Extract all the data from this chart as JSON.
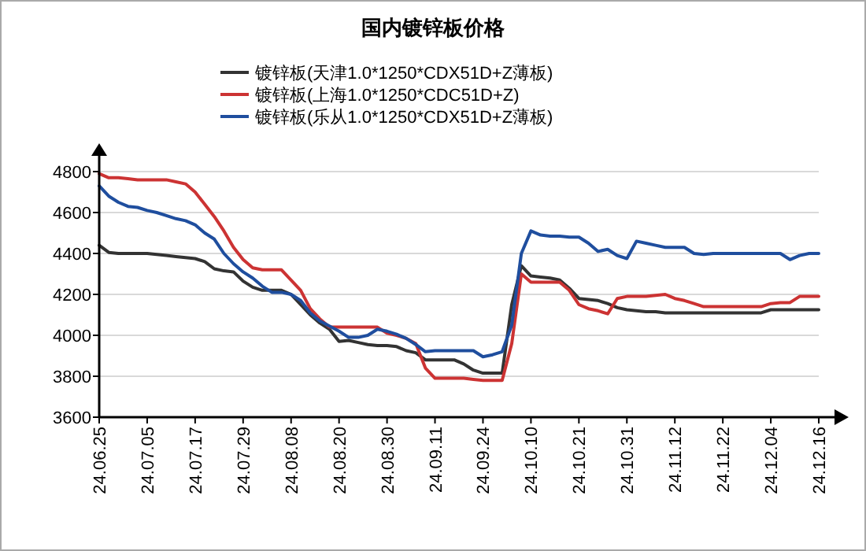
{
  "chart_data": {
    "type": "line",
    "title": "国内镀锌板价格",
    "categories": [
      "24.06.25",
      null,
      null,
      null,
      null,
      "24.07.05",
      null,
      null,
      null,
      null,
      "24.07.17",
      null,
      null,
      null,
      null,
      "24.07.29",
      null,
      null,
      null,
      null,
      "24.08.08",
      null,
      null,
      null,
      null,
      "24.08.20",
      null,
      null,
      null,
      null,
      "24.08.30",
      null,
      null,
      null,
      null,
      "24.09.11",
      null,
      null,
      null,
      null,
      "24.09.24",
      null,
      null,
      null,
      null,
      "24.10.10",
      null,
      null,
      null,
      null,
      "24.10.21",
      null,
      null,
      null,
      null,
      "24.10.31",
      null,
      null,
      null,
      null,
      "24.11.12",
      null,
      null,
      null,
      null,
      "24.11.22",
      null,
      null,
      null,
      null,
      "24.12.04",
      null,
      null,
      null,
      null,
      "24.12.16"
    ],
    "series": [
      {
        "name": "镀锌板(天津1.0*1250*CDX51D+Z薄板)",
        "color": "#333333",
        "values": [
          4440,
          4405,
          4400,
          4400,
          4400,
          4400,
          4395,
          4390,
          4385,
          4380,
          4375,
          4360,
          4325,
          4315,
          4310,
          4265,
          4235,
          4220,
          4220,
          4220,
          4200,
          4150,
          4100,
          4060,
          4030,
          3970,
          3975,
          3965,
          3955,
          3950,
          3950,
          3945,
          3925,
          3915,
          3880,
          3880,
          3880,
          3880,
          3860,
          3830,
          3815,
          3815,
          3815,
          4150,
          4340,
          4290,
          4285,
          4280,
          4270,
          4230,
          4180,
          4175,
          4170,
          4155,
          4135,
          4125,
          4120,
          4115,
          4115,
          4110,
          4110,
          4110,
          4110,
          4110,
          4110,
          4110,
          4110,
          4110,
          4110,
          4110,
          4125,
          4125,
          4125,
          4125,
          4125,
          4125
        ]
      },
      {
        "name": "镀锌板(上海1.0*1250*CDC51D+Z)",
        "color": "#cc3333",
        "values": [
          4790,
          4770,
          4770,
          4765,
          4760,
          4760,
          4760,
          4760,
          4750,
          4740,
          4700,
          4640,
          4580,
          4510,
          4430,
          4370,
          4330,
          4320,
          4320,
          4320,
          4270,
          4220,
          4130,
          4080,
          4040,
          4040,
          4040,
          4040,
          4040,
          4040,
          4010,
          4000,
          3985,
          3960,
          3840,
          3790,
          3790,
          3790,
          3790,
          3785,
          3780,
          3780,
          3780,
          3960,
          4300,
          4260,
          4260,
          4260,
          4260,
          4220,
          4150,
          4130,
          4120,
          4105,
          4180,
          4190,
          4190,
          4190,
          4195,
          4200,
          4180,
          4170,
          4155,
          4140,
          4140,
          4140,
          4140,
          4140,
          4140,
          4140,
          4155,
          4160,
          4160,
          4190,
          4190,
          4190
        ]
      },
      {
        "name": "镀锌板(乐从1.0*1250*CDX51D+Z薄板)",
        "color": "#1f4e9e",
        "values": [
          4730,
          4680,
          4650,
          4630,
          4625,
          4610,
          4600,
          4585,
          4570,
          4560,
          4540,
          4500,
          4470,
          4400,
          4350,
          4310,
          4280,
          4240,
          4210,
          4210,
          4200,
          4170,
          4110,
          4070,
          4045,
          4020,
          3990,
          3990,
          4000,
          4030,
          4020,
          4005,
          3985,
          3955,
          3920,
          3925,
          3925,
          3925,
          3925,
          3925,
          3895,
          3905,
          3920,
          4050,
          4400,
          4510,
          4490,
          4485,
          4485,
          4480,
          4480,
          4450,
          4410,
          4420,
          4390,
          4375,
          4460,
          4450,
          4440,
          4430,
          4430,
          4430,
          4400,
          4395,
          4400,
          4400,
          4400,
          4400,
          4400,
          4400,
          4400,
          4400,
          4370,
          4390,
          4400,
          4400
        ]
      }
    ],
    "ylim": [
      3600,
      4800
    ],
    "yticks": [
      3600,
      3800,
      4000,
      4200,
      4400,
      4600,
      4800
    ],
    "grid": "y",
    "legend": "top",
    "marker": "none",
    "line_style": "solid"
  }
}
